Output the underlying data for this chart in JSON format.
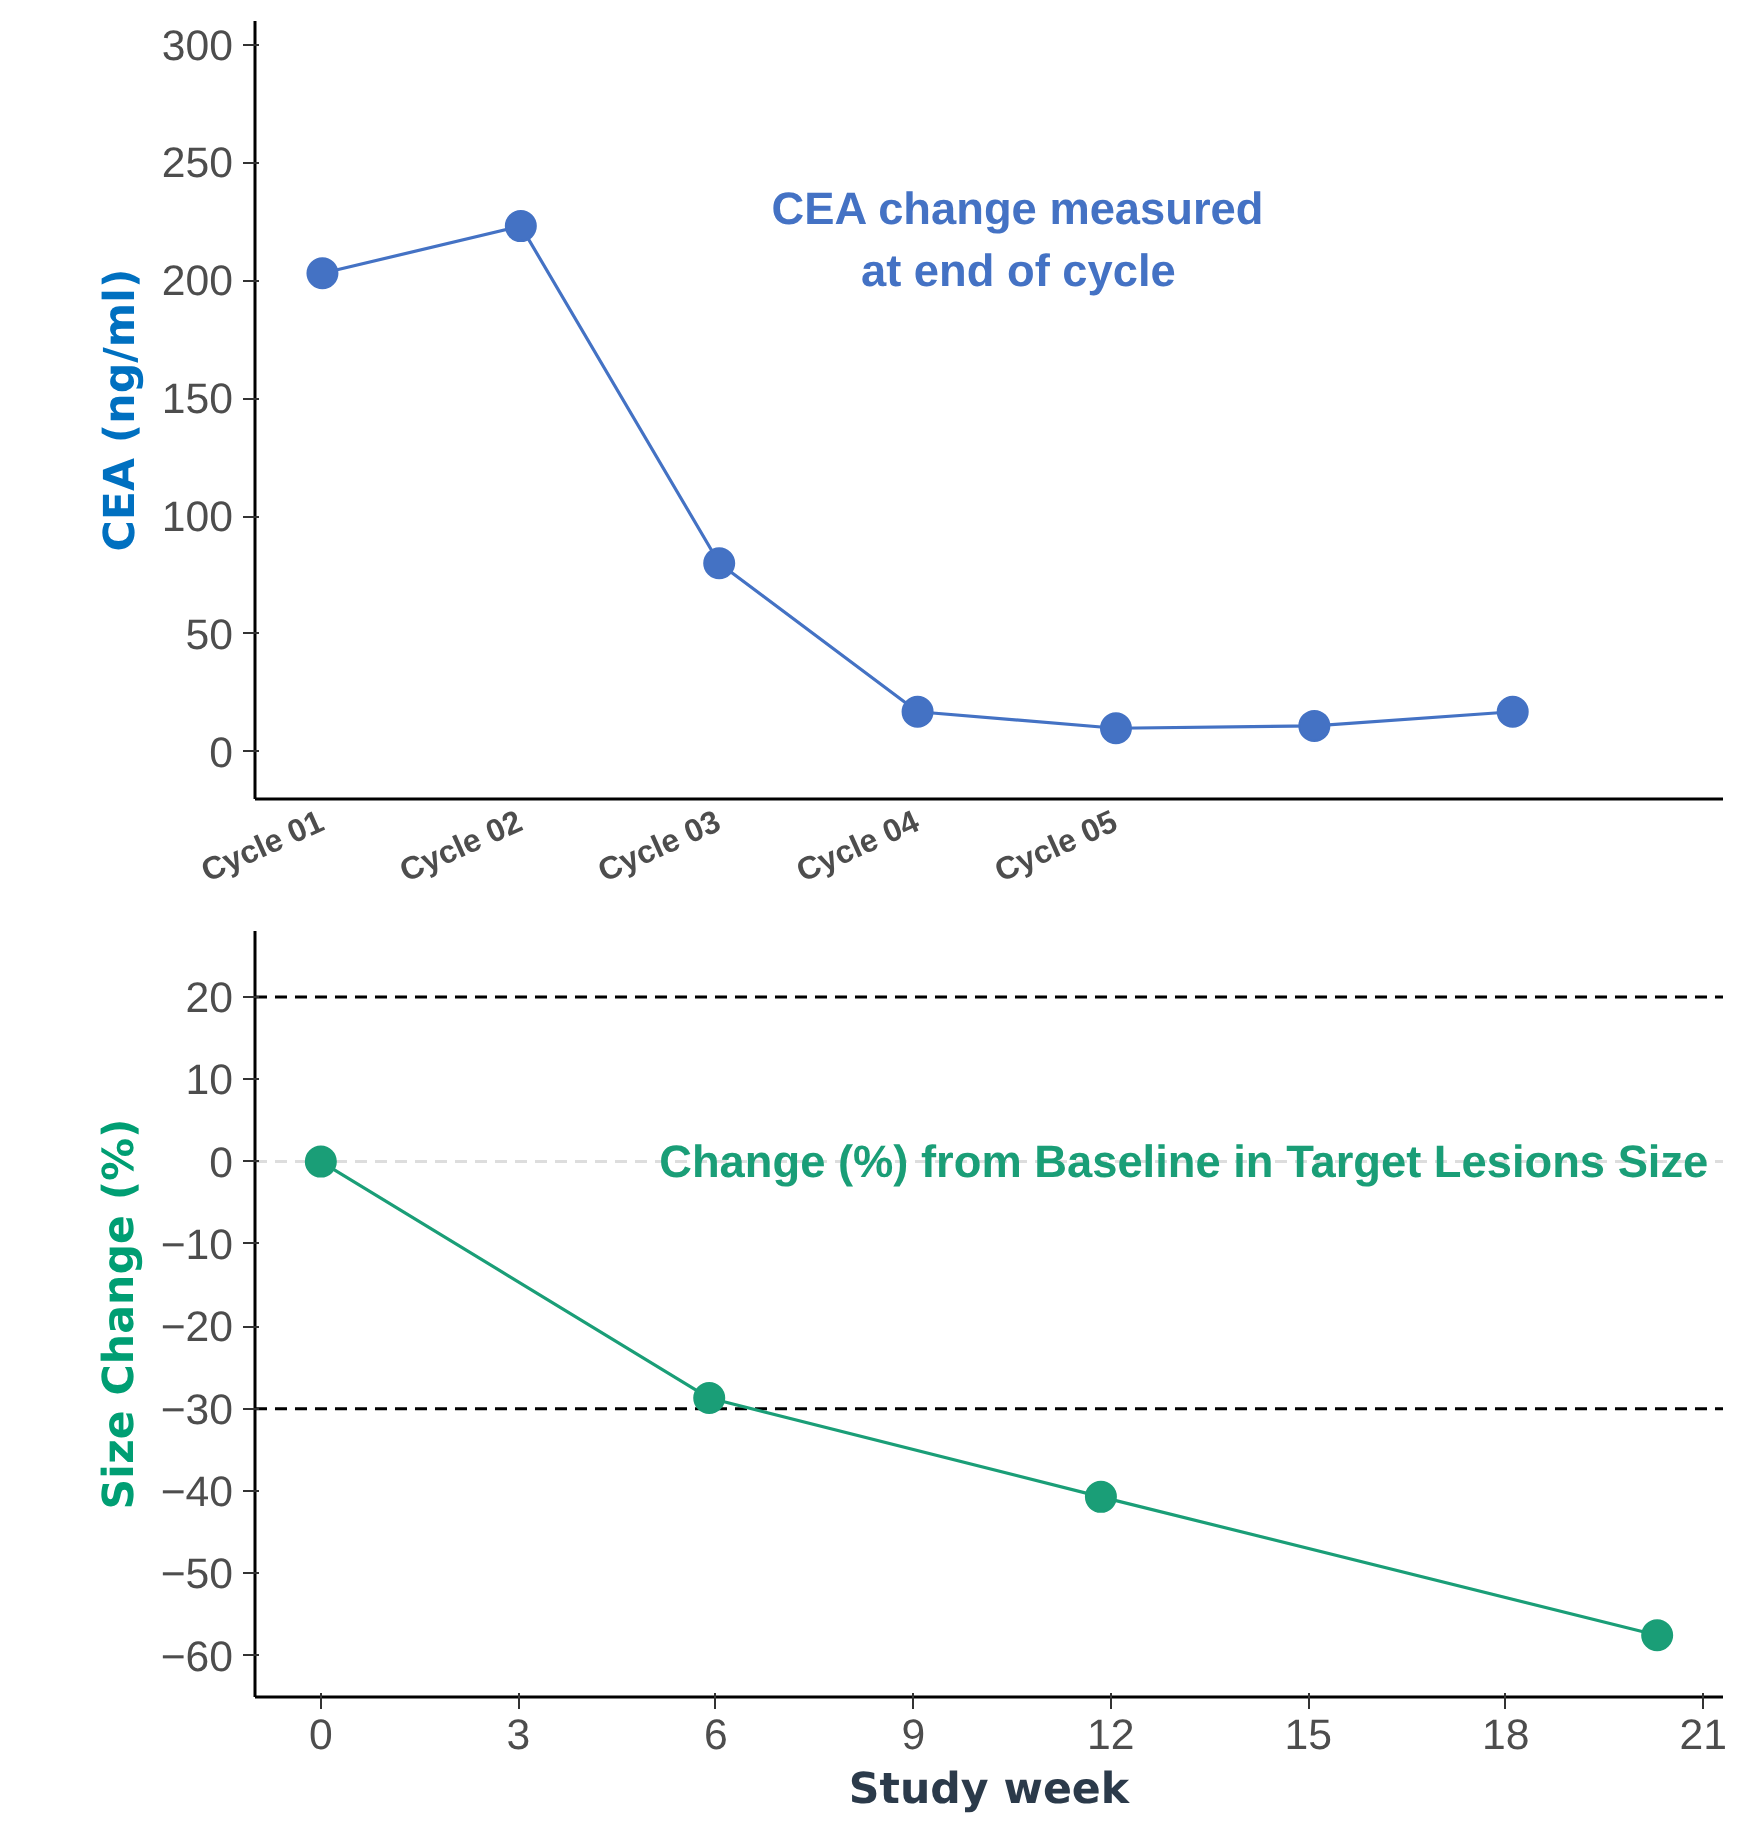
{
  "chart_data": [
    {
      "type": "line",
      "ylabel": "CEA (ng/ml)",
      "categories": [
        "Cycle 01",
        "Cycle 02",
        "Cycle 03",
        "Cycle 04",
        "Cycle 05",
        null,
        null
      ],
      "series": [
        {
          "color": "#4472c4",
          "values": [
            203,
            223,
            80,
            17,
            10,
            11,
            17
          ]
        }
      ],
      "ylim": [
        -20,
        310
      ],
      "yticks": [
        0,
        50,
        100,
        150,
        200,
        250,
        300
      ],
      "marker": "circle",
      "line_style": "solid",
      "annotations": [
        "CEA change measured\nat end of cycle"
      ]
    },
    {
      "type": "line",
      "xlabel": "Study week",
      "ylabel": "Size Change (%)",
      "series": [
        {
          "color": "#1a9e77",
          "x": [
            0,
            5.9,
            11.85,
            20.3
          ],
          "values": [
            0,
            -28.7,
            -40.7,
            -57.5
          ]
        }
      ],
      "xlim": [
        -1,
        21.3
      ],
      "xticks": [
        0,
        3,
        6,
        9,
        12,
        15,
        18,
        21
      ],
      "ylim": [
        -65,
        28
      ],
      "yticks": [
        -60,
        -50,
        -40,
        -30,
        -20,
        -10,
        0,
        10,
        20
      ],
      "marker": "circle",
      "line_style": "solid",
      "ref_lines": [
        {
          "axis": "y",
          "value": 20,
          "color": "#000000",
          "line_style": "dashed"
        },
        {
          "axis": "y",
          "value": -30,
          "color": "#000000",
          "line_style": "dashed"
        },
        {
          "axis": "y",
          "value": 0,
          "color": "#dddddd",
          "line_style": "dashed"
        }
      ],
      "annotations": [
        "Change (%) from Baseline in Target Lesions Size"
      ]
    }
  ]
}
